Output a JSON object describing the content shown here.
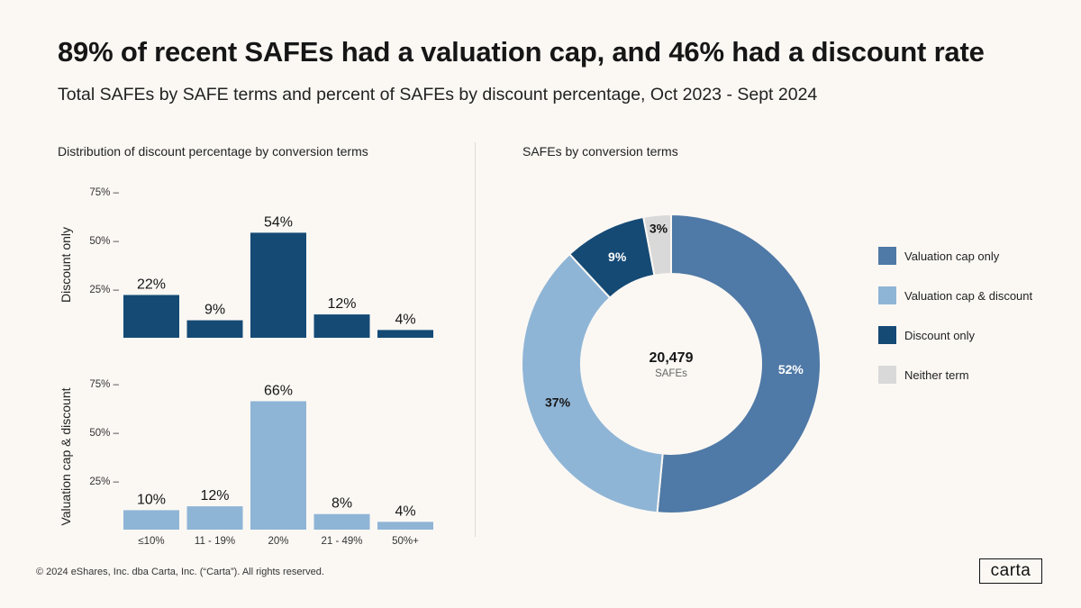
{
  "header": {
    "title": "89% of recent SAFEs had a valuation cap, and 46% had a discount rate",
    "subtitle": "Total SAFEs by SAFE terms and percent of SAFEs by discount percentage, Oct 2023 - Sept 2024"
  },
  "left_panel": {
    "title": "Distribution of discount percentage by conversion terms"
  },
  "right_panel": {
    "title": "SAFEs by conversion terms"
  },
  "colors": {
    "valuation_cap_only": "#4f79a6",
    "valuation_cap_and_discount": "#8fb5d6",
    "discount_only": "#154a75",
    "neither": "#d9d9d9"
  },
  "chart_data": [
    {
      "type": "bar",
      "title": "Distribution of discount percentage by conversion terms",
      "categories": [
        "≤10%",
        "11 - 19%",
        "20%",
        "21 - 49%",
        "50%+"
      ],
      "yticks": [
        "25%",
        "50%",
        "75%"
      ],
      "ylim": [
        0,
        75
      ],
      "series": [
        {
          "name": "Discount only",
          "values": [
            22,
            9,
            54,
            12,
            4
          ],
          "labels": [
            "22%",
            "9%",
            "54%",
            "12%",
            "4%"
          ]
        },
        {
          "name": "Valuation cap & discount",
          "values": [
            10,
            12,
            66,
            8,
            4
          ],
          "labels": [
            "10%",
            "12%",
            "66%",
            "8%",
            "4%"
          ]
        }
      ]
    },
    {
      "type": "pie",
      "title": "SAFEs by conversion terms",
      "center_value": "20,479",
      "center_label": "SAFEs",
      "slices": [
        {
          "name": "Valuation cap only",
          "value": 52,
          "label": "52%"
        },
        {
          "name": "Valuation cap & discount",
          "value": 37,
          "label": "37%"
        },
        {
          "name": "Discount only",
          "value": 9,
          "label": "9%"
        },
        {
          "name": "Neither term",
          "value": 3,
          "label": "3%"
        }
      ]
    }
  ],
  "legend": [
    {
      "label": "Valuation cap only"
    },
    {
      "label": "Valuation cap & discount"
    },
    {
      "label": "Discount only"
    },
    {
      "label": "Neither term"
    }
  ],
  "footer": {
    "copyright": "© 2024 eShares, Inc. dba Carta, Inc. (“Carta”). All rights reserved.",
    "logo": "carta"
  }
}
